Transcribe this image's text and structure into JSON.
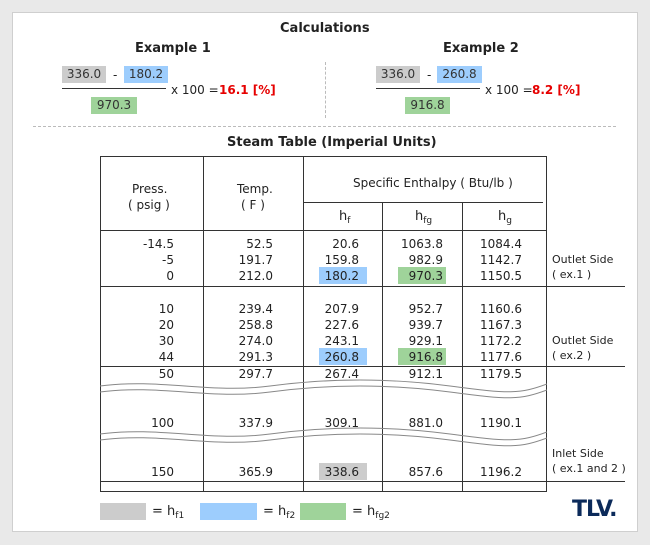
{
  "calc": {
    "title": "Calculations",
    "ex1": {
      "title": "Example 1",
      "a": "336.0",
      "minus": "-",
      "b": "180.2",
      "denom": "970.3",
      "times": "x 100 =",
      "result": "16.1 [%]"
    },
    "ex2": {
      "title": "Example 2",
      "a": "336.0",
      "minus": "-",
      "b": "260.8",
      "denom": "916.8",
      "times": "x 100 =",
      "result": "8.2 [%]"
    }
  },
  "table": {
    "title": "Steam Table (Imperial Units)",
    "h_press_1": "Press.",
    "h_press_2": "( psig )",
    "h_temp_1": "Temp.",
    "h_temp_2": "( F )",
    "h_enthalpy": "Specific Enthalpy ( Btu/lb )",
    "h_hf": "h",
    "h_hf_sub": "f",
    "h_hfg": "h",
    "h_hfg_sub": "fg",
    "h_hg": "h",
    "h_hg_sub": "g",
    "rows": [
      [
        "-14.5",
        "52.5",
        "20.6",
        "1063.8",
        "1084.4"
      ],
      [
        "-5",
        "191.7",
        "159.8",
        "982.9",
        "1142.7"
      ],
      [
        "0",
        "212.0",
        "180.2",
        "970.3",
        "1150.5"
      ],
      [
        "10",
        "239.4",
        "207.9",
        "952.7",
        "1160.6"
      ],
      [
        "20",
        "258.8",
        "227.6",
        "939.7",
        "1167.3"
      ],
      [
        "30",
        "274.0",
        "243.1",
        "929.1",
        "1172.2"
      ],
      [
        "44",
        "291.3",
        "260.8",
        "916.8",
        "1177.6"
      ],
      [
        "50",
        "297.7",
        "267.4",
        "912.1",
        "1179.5"
      ],
      [
        "100",
        "337.9",
        "309.1",
        "881.0",
        "1190.1"
      ],
      [
        "150",
        "365.9",
        "338.6",
        "857.6",
        "1196.2"
      ]
    ],
    "side1_1": "Outlet Side",
    "side1_2": "( ex.1 )",
    "side2_1": "Outlet Side",
    "side2_2": "( ex.2 )",
    "side3_1": "Inlet Side",
    "side3_2": "( ex.1 and 2 )"
  },
  "legend": {
    "eq": "=",
    "hf1": "h",
    "hf1_sub": "f1",
    "hf2": "h",
    "hf2_sub": "f2",
    "hfg2": "h",
    "hfg2_sub": "fg2"
  },
  "colors": {
    "gray": "#cccccc",
    "blue": "#9dcdfd",
    "green": "#9fd39a",
    "result": "#e60000",
    "logo": "#0b2a5a"
  },
  "logo": "TLV."
}
